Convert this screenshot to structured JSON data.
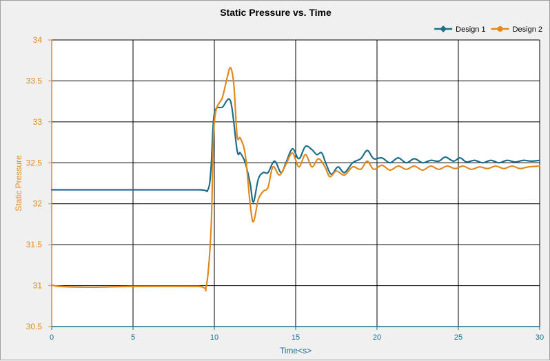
{
  "chart_data": {
    "type": "line",
    "title": "Static Pressure vs. Time",
    "xlabel": "Time<s>",
    "ylabel": "Static Pressure",
    "xlim": [
      0,
      30
    ],
    "ylim": [
      30.5,
      34
    ],
    "xticks": [
      "0",
      "5",
      "10",
      "15",
      "20",
      "25",
      "30"
    ],
    "yticks": [
      "30.5",
      "31",
      "31.5",
      "32",
      "32.5",
      "33",
      "33.5",
      "34"
    ],
    "grid": true,
    "legend_position": "top-right",
    "series": [
      {
        "name": "Design 1",
        "color": "#1c6e8c",
        "marker": "diamond",
        "points": [
          [
            0,
            32.17
          ],
          [
            5,
            32.17
          ],
          [
            9,
            32.17
          ],
          [
            9.6,
            32.17
          ],
          [
            9.8,
            32.45
          ],
          [
            10.0,
            33.1
          ],
          [
            10.5,
            33.18
          ],
          [
            11.0,
            33.25
          ],
          [
            11.4,
            32.65
          ],
          [
            11.6,
            32.62
          ],
          [
            11.9,
            32.5
          ],
          [
            12.2,
            32.25
          ],
          [
            12.4,
            32.02
          ],
          [
            12.7,
            32.3
          ],
          [
            13.0,
            32.38
          ],
          [
            13.3,
            32.38
          ],
          [
            13.7,
            32.52
          ],
          [
            14.1,
            32.38
          ],
          [
            14.4,
            32.5
          ],
          [
            14.8,
            32.67
          ],
          [
            15.2,
            32.55
          ],
          [
            15.6,
            32.7
          ],
          [
            16.0,
            32.66
          ],
          [
            16.3,
            32.6
          ],
          [
            16.6,
            32.62
          ],
          [
            16.9,
            32.47
          ],
          [
            17.2,
            32.36
          ],
          [
            17.6,
            32.45
          ],
          [
            18.0,
            32.38
          ],
          [
            18.5,
            32.5
          ],
          [
            19.0,
            32.55
          ],
          [
            19.4,
            32.65
          ],
          [
            19.8,
            32.55
          ],
          [
            20.3,
            32.56
          ],
          [
            20.8,
            32.5
          ],
          [
            21.3,
            32.56
          ],
          [
            21.8,
            32.5
          ],
          [
            22.3,
            32.55
          ],
          [
            22.8,
            32.5
          ],
          [
            23.3,
            32.53
          ],
          [
            23.8,
            32.52
          ],
          [
            24.2,
            32.57
          ],
          [
            24.7,
            32.52
          ],
          [
            25.1,
            32.56
          ],
          [
            25.5,
            32.51
          ],
          [
            26.0,
            32.53
          ],
          [
            26.5,
            32.5
          ],
          [
            27.0,
            32.53
          ],
          [
            27.5,
            32.5
          ],
          [
            28.0,
            32.53
          ],
          [
            28.5,
            32.51
          ],
          [
            29.0,
            32.53
          ],
          [
            29.5,
            32.52
          ],
          [
            30.0,
            32.53
          ]
        ]
      },
      {
        "name": "Design 2",
        "color": "#e08a1e",
        "marker": "circle",
        "points": [
          [
            0,
            31.01
          ],
          [
            0.5,
            30.99
          ],
          [
            2.5,
            30.98
          ],
          [
            5,
            30.99
          ],
          [
            9,
            30.99
          ],
          [
            9.5,
            30.99
          ],
          [
            9.8,
            31.7
          ],
          [
            10.0,
            33.0
          ],
          [
            10.5,
            33.3
          ],
          [
            10.8,
            33.55
          ],
          [
            11.0,
            33.66
          ],
          [
            11.2,
            33.45
          ],
          [
            11.4,
            32.83
          ],
          [
            11.6,
            32.8
          ],
          [
            11.9,
            32.6
          ],
          [
            12.2,
            32.0
          ],
          [
            12.4,
            31.78
          ],
          [
            12.7,
            32.05
          ],
          [
            13.0,
            32.15
          ],
          [
            13.3,
            32.2
          ],
          [
            13.6,
            32.45
          ],
          [
            14.0,
            32.35
          ],
          [
            14.4,
            32.48
          ],
          [
            14.8,
            32.62
          ],
          [
            15.2,
            32.45
          ],
          [
            15.6,
            32.6
          ],
          [
            16.0,
            32.45
          ],
          [
            16.4,
            32.55
          ],
          [
            16.8,
            32.45
          ],
          [
            17.1,
            32.33
          ],
          [
            17.5,
            32.4
          ],
          [
            18.0,
            32.35
          ],
          [
            18.5,
            32.45
          ],
          [
            19.0,
            32.42
          ],
          [
            19.4,
            32.52
          ],
          [
            19.8,
            32.42
          ],
          [
            20.3,
            32.47
          ],
          [
            20.8,
            32.41
          ],
          [
            21.3,
            32.46
          ],
          [
            21.8,
            32.42
          ],
          [
            22.3,
            32.46
          ],
          [
            22.8,
            32.41
          ],
          [
            23.3,
            32.46
          ],
          [
            23.8,
            32.42
          ],
          [
            24.3,
            32.46
          ],
          [
            24.8,
            32.43
          ],
          [
            25.3,
            32.46
          ],
          [
            25.8,
            32.42
          ],
          [
            26.3,
            32.45
          ],
          [
            26.8,
            32.43
          ],
          [
            27.3,
            32.46
          ],
          [
            27.8,
            32.43
          ],
          [
            28.3,
            32.46
          ],
          [
            28.8,
            32.43
          ],
          [
            29.3,
            32.45
          ],
          [
            30.0,
            32.46
          ]
        ]
      }
    ]
  }
}
